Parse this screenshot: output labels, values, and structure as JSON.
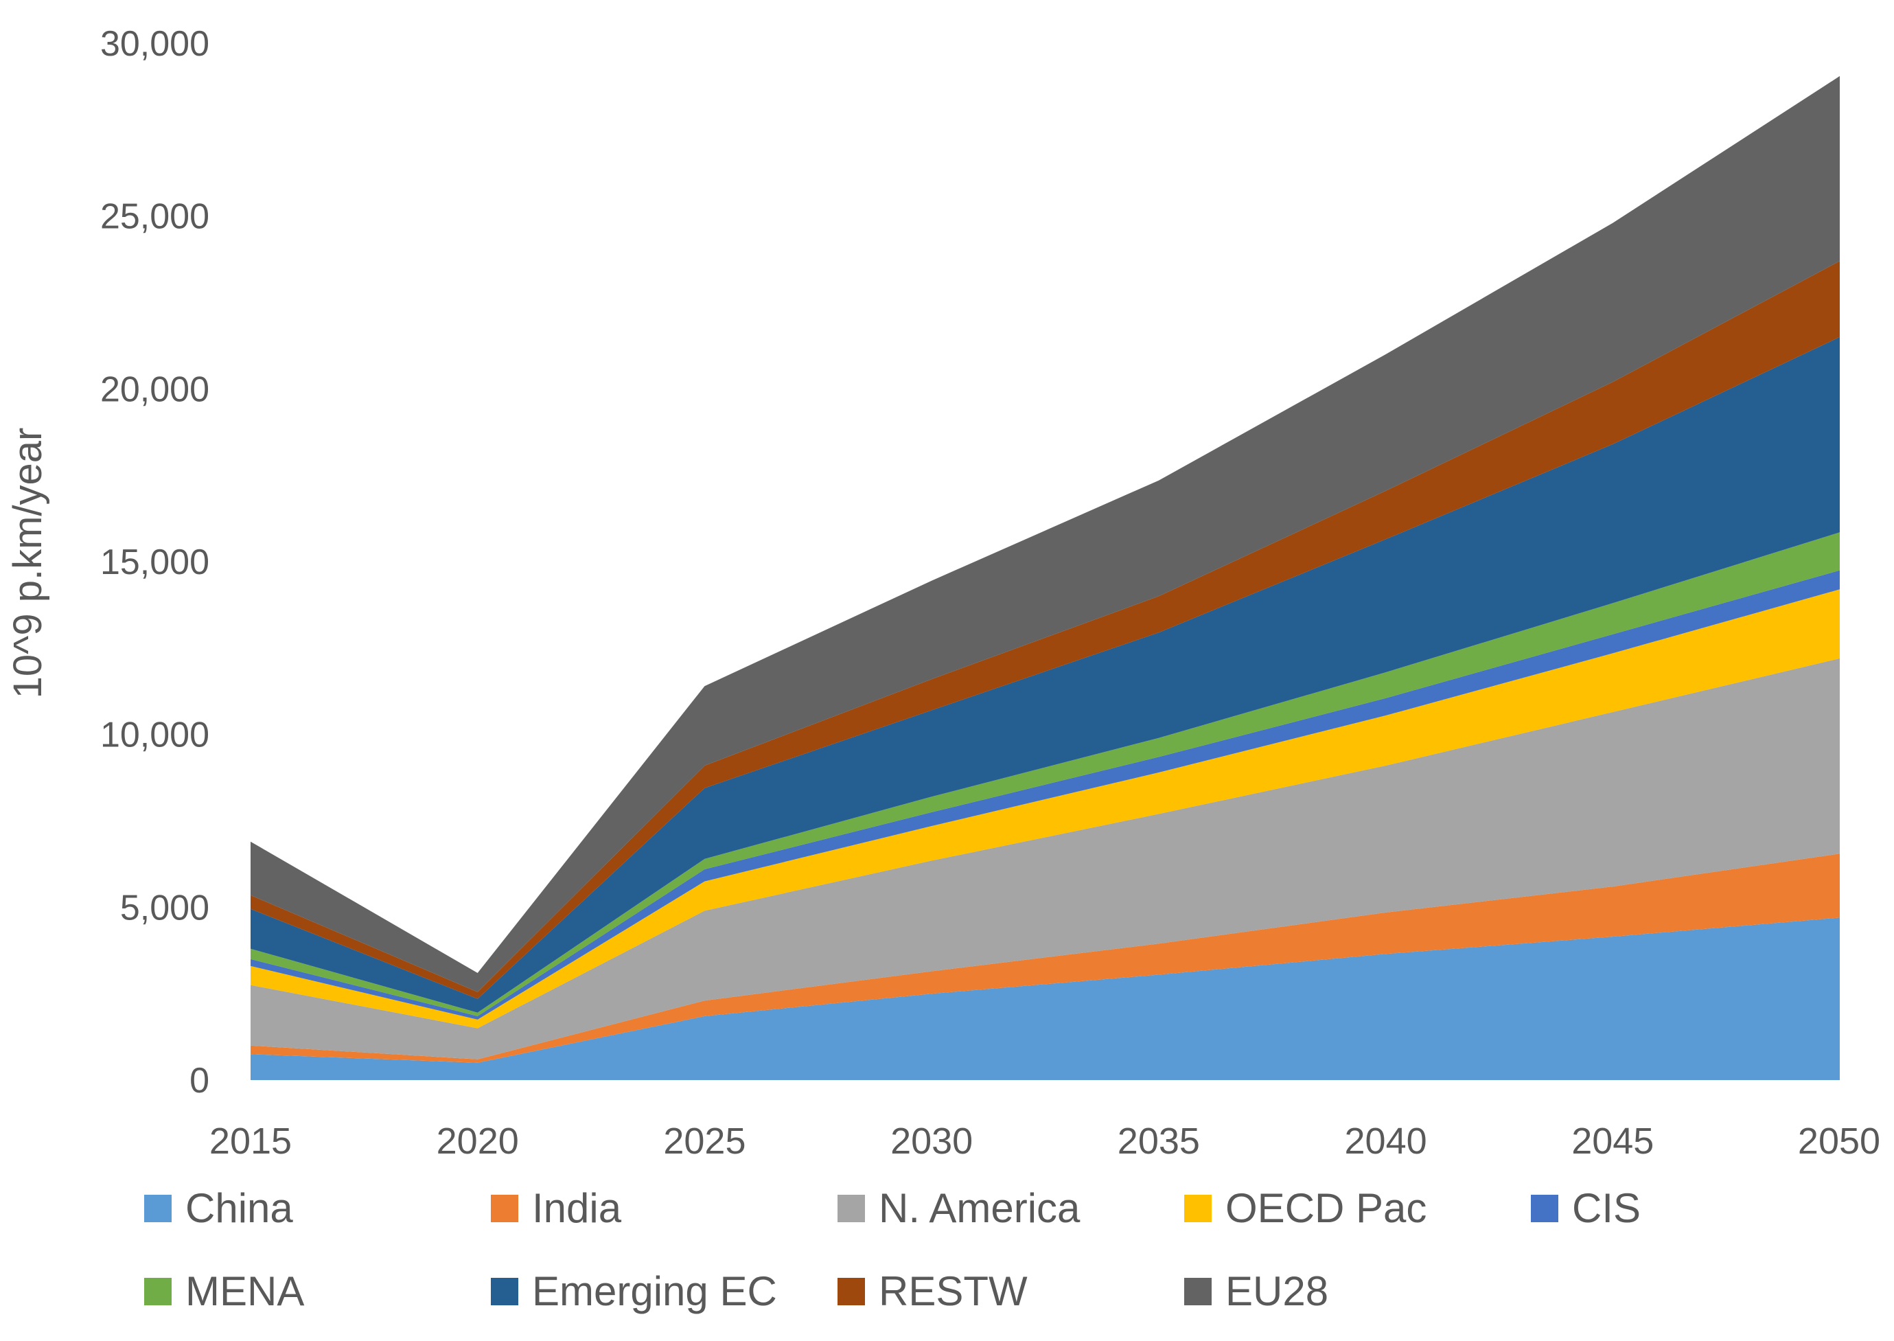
{
  "chart_data": {
    "type": "area",
    "stacked": true,
    "ylabel": "10^9 p.km/year",
    "xlabel": "",
    "ylim": [
      0,
      30000
    ],
    "y_ticks": [
      0,
      5000,
      10000,
      15000,
      20000,
      25000,
      30000
    ],
    "y_tick_labels": [
      "0",
      "5,000",
      "10,000",
      "15,000",
      "20,000",
      "25,000",
      "30,000"
    ],
    "categories": [
      "2015",
      "2020",
      "2025",
      "2030",
      "2035",
      "2040",
      "2045",
      "2050"
    ],
    "legend_position": "bottom",
    "series": [
      {
        "name": "China",
        "color": "#5B9BD5",
        "values": [
          750,
          500,
          1850,
          2500,
          3050,
          3650,
          4150,
          4700
        ]
      },
      {
        "name": "India",
        "color": "#ED7D31",
        "values": [
          250,
          100,
          450,
          650,
          900,
          1200,
          1450,
          1850
        ]
      },
      {
        "name": "N. America",
        "color": "#A5A5A5",
        "values": [
          1750,
          900,
          2600,
          3200,
          3750,
          4250,
          5050,
          5650
        ]
      },
      {
        "name": "OECD Pac",
        "color": "#FFC000",
        "values": [
          550,
          250,
          850,
          1000,
          1200,
          1450,
          1700,
          2000
        ]
      },
      {
        "name": "CIS",
        "color": "#4472C4",
        "values": [
          200,
          100,
          350,
          400,
          450,
          500,
          550,
          550
        ]
      },
      {
        "name": "MENA",
        "color": "#70AD47",
        "values": [
          300,
          100,
          300,
          450,
          550,
          750,
          900,
          1100
        ]
      },
      {
        "name": "Emerging EC",
        "color": "#255E91",
        "values": [
          1150,
          400,
          2050,
          2500,
          3050,
          3850,
          4600,
          5650
        ]
      },
      {
        "name": "RESTW",
        "color": "#9E480E",
        "values": [
          400,
          200,
          650,
          900,
          1050,
          1400,
          1800,
          2200
        ]
      },
      {
        "name": "EU28",
        "color": "#636363",
        "values": [
          1550,
          550,
          2300,
          2850,
          3350,
          3950,
          4600,
          5350
        ]
      }
    ]
  }
}
